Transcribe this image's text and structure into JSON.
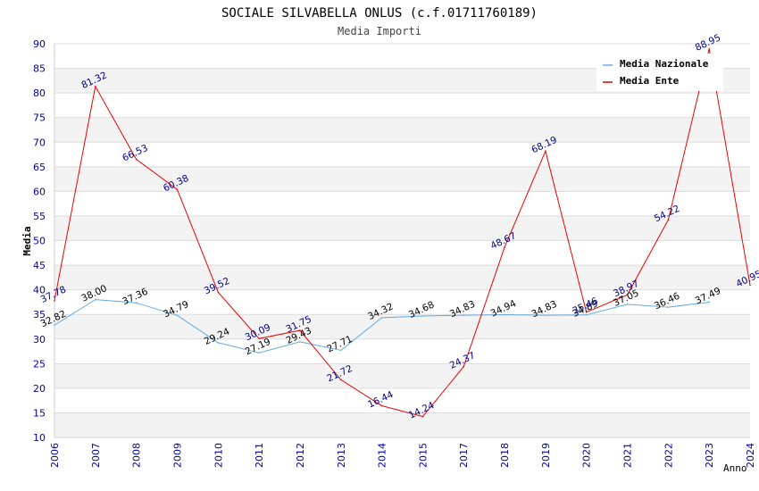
{
  "chart_data": {
    "type": "line",
    "title": "SOCIALE SILVABELLA ONLUS (c.f.01711760189)",
    "subtitle": "Media Importi",
    "xlabel": "Anno",
    "ylabel": "Media",
    "ylim": [
      10,
      90
    ],
    "yticks": [
      "10",
      "15",
      "20",
      "25",
      "30",
      "35",
      "40",
      "45",
      "50",
      "55",
      "60",
      "65",
      "70",
      "75",
      "80",
      "85",
      "90"
    ],
    "categories": [
      "2006",
      "2007",
      "2008",
      "2009",
      "2010",
      "2011",
      "2012",
      "2013",
      "2014",
      "2015",
      "2017",
      "2018",
      "2019",
      "2020",
      "2021",
      "2022",
      "2023",
      "2024"
    ],
    "legend_position": "top-right",
    "series": [
      {
        "name": "Media Nazionale",
        "color": "#66aadd",
        "label_color": "#000000",
        "values": [
          32.82,
          38.0,
          37.36,
          34.79,
          29.24,
          27.19,
          29.43,
          27.71,
          34.32,
          34.68,
          34.83,
          34.94,
          34.83,
          34.89,
          37.05,
          36.46,
          37.49,
          null
        ],
        "labels": [
          "32.82",
          "38.00",
          "37.36",
          "34.79",
          "29.24",
          "27.19",
          "29.43",
          "27.71",
          "34.32",
          "34.68",
          "34.83",
          "34.94",
          "34.83",
          "34.89",
          "37.05",
          "36.46",
          "37.49",
          ""
        ]
      },
      {
        "name": "Media Ente",
        "color": "#ee0000",
        "label_color": "#000088",
        "values": [
          37.78,
          81.32,
          66.53,
          60.38,
          39.52,
          30.09,
          31.75,
          21.72,
          16.44,
          14.24,
          24.37,
          48.67,
          68.19,
          35.46,
          38.97,
          54.22,
          88.95,
          40.95
        ],
        "labels": [
          "37.78",
          "81.32",
          "66.53",
          "60.38",
          "39.52",
          "30.09",
          "31.75",
          "21.72",
          "16.44",
          "14.24",
          "24.37",
          "48.67",
          "68.19",
          "35.46",
          "38.97",
          "54.22",
          "88.95",
          "40.95"
        ]
      }
    ]
  }
}
